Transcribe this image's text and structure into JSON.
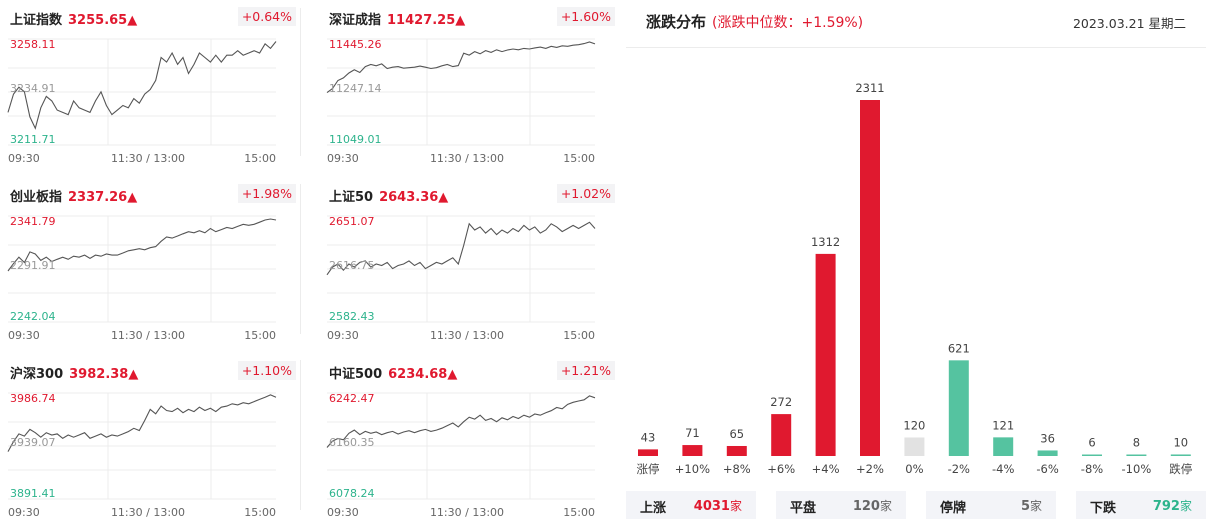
{
  "indices": [
    {
      "name": "上证指数",
      "price": "3255.65▲",
      "change": "+0.64%",
      "y_top": "3258.11",
      "y_mid": "3234.91",
      "y_bot": "3211.71",
      "x_labels": [
        "09:30",
        "11:30 / 13:00",
        "15:00"
      ],
      "ylim": [
        3211.71,
        3258.11
      ],
      "series": [
        3226,
        3234,
        3237,
        3235,
        3224,
        3219,
        3228,
        3233,
        3231,
        3227,
        3226,
        3225,
        3231,
        3228,
        3227,
        3226,
        3231,
        3235,
        3229,
        3225,
        3227,
        3229,
        3228,
        3232,
        3230,
        3234,
        3236,
        3240,
        3250,
        3248,
        3252,
        3247,
        3250,
        3243,
        3247,
        3252,
        3250,
        3248,
        3251,
        3248,
        3251,
        3251,
        3253,
        3251,
        3252,
        3253,
        3252,
        3256,
        3254,
        3257
      ]
    },
    {
      "name": "深证成指",
      "price": "11427.25▲",
      "change": "+1.60%",
      "y_top": "11445.26",
      "y_mid": "11247.14",
      "y_bot": "11049.01",
      "x_labels": [
        "09:30",
        "11:30 / 13:00",
        "15:00"
      ],
      "ylim": [
        11049.01,
        11445.26
      ],
      "series": [
        11245,
        11260,
        11290,
        11300,
        11318,
        11330,
        11320,
        11342,
        11350,
        11345,
        11352,
        11335,
        11340,
        11342,
        11336,
        11338,
        11340,
        11344,
        11340,
        11335,
        11338,
        11345,
        11350,
        11342,
        11346,
        11392,
        11385,
        11398,
        11390,
        11402,
        11395,
        11405,
        11398,
        11404,
        11408,
        11405,
        11410,
        11408,
        11412,
        11415,
        11410,
        11418,
        11414,
        11420,
        11418,
        11422,
        11424,
        11428,
        11434,
        11427
      ]
    },
    {
      "name": "创业板指",
      "price": "2337.26▲",
      "change": "+1.98%",
      "y_top": "2341.79",
      "y_mid": "2291.91",
      "y_bot": "2242.04",
      "x_labels": [
        "09:30",
        "11:30 / 13:00",
        "15:00"
      ],
      "ylim": [
        2242.04,
        2341.79
      ],
      "series": [
        2290,
        2297,
        2303,
        2298,
        2308,
        2306,
        2300,
        2303,
        2299,
        2301,
        2303,
        2301,
        2304,
        2303,
        2305,
        2302,
        2305,
        2304,
        2306,
        2305,
        2305,
        2307,
        2309,
        2310,
        2311,
        2310,
        2312,
        2313,
        2318,
        2322,
        2321,
        2323,
        2325,
        2327,
        2326,
        2328,
        2326,
        2330,
        2327,
        2329,
        2331,
        2330,
        2332,
        2334,
        2333,
        2334,
        2336,
        2338,
        2339,
        2338
      ]
    },
    {
      "name": "上证50",
      "price": "2643.36▲",
      "change": "+1.02%",
      "y_top": "2651.07",
      "y_mid": "2616.75",
      "y_bot": "2582.43",
      "x_labels": [
        "09:30",
        "11:30 / 13:00",
        "15:00"
      ],
      "ylim": [
        2582.43,
        2651.07
      ],
      "series": [
        2613,
        2618,
        2620,
        2616,
        2620,
        2618,
        2621,
        2622,
        2618,
        2620,
        2619,
        2621,
        2617,
        2619,
        2620,
        2622,
        2619,
        2621,
        2617,
        2619,
        2621,
        2620,
        2622,
        2624,
        2620,
        2632,
        2646,
        2642,
        2644,
        2640,
        2643,
        2639,
        2642,
        2640,
        2643,
        2641,
        2645,
        2642,
        2644,
        2640,
        2642,
        2646,
        2644,
        2641,
        2643,
        2645,
        2643,
        2645,
        2647,
        2643
      ]
    },
    {
      "name": "沪深300",
      "price": "3982.38▲",
      "change": "+1.10%",
      "y_top": "3986.74",
      "y_mid": "3939.07",
      "y_bot": "3891.41",
      "x_labels": [
        "09:30",
        "11:30 / 13:00",
        "15:00"
      ],
      "ylim": [
        3891.41,
        3986.74
      ],
      "series": [
        3934,
        3943,
        3950,
        3948,
        3954,
        3951,
        3947,
        3951,
        3949,
        3950,
        3946,
        3949,
        3947,
        3949,
        3951,
        3946,
        3948,
        3950,
        3947,
        3949,
        3948,
        3950,
        3952,
        3955,
        3953,
        3962,
        3972,
        3968,
        3975,
        3971,
        3970,
        3973,
        3969,
        3972,
        3970,
        3974,
        3971,
        3973,
        3970,
        3974,
        3975,
        3977,
        3976,
        3978,
        3977,
        3979,
        3981,
        3983,
        3985,
        3983
      ]
    },
    {
      "name": "中证500",
      "price": "6234.68▲",
      "change": "+1.21%",
      "y_top": "6242.47",
      "y_mid": "6160.35",
      "y_bot": "6078.24",
      "x_labels": [
        "09:30",
        "11:30 / 13:00",
        "15:00"
      ],
      "ylim": [
        6078.24,
        6242.47
      ],
      "series": [
        6158,
        6168,
        6172,
        6170,
        6180,
        6185,
        6178,
        6183,
        6180,
        6182,
        6178,
        6181,
        6183,
        6179,
        6182,
        6184,
        6181,
        6184,
        6186,
        6183,
        6185,
        6188,
        6192,
        6196,
        6190,
        6198,
        6205,
        6202,
        6208,
        6200,
        6203,
        6198,
        6204,
        6201,
        6206,
        6203,
        6208,
        6205,
        6210,
        6208,
        6212,
        6215,
        6220,
        6218,
        6225,
        6228,
        6230,
        6232,
        6238,
        6235
      ]
    }
  ],
  "distribution": {
    "title": "涨跌分布",
    "subtitle": "(涨跌中位数：+1.59%)",
    "date": "2023.03.21 星期二"
  },
  "chart_data": {
    "type": "bar",
    "categories": [
      "涨停",
      "+10%",
      "+8%",
      "+6%",
      "+4%",
      "+2%",
      "0%",
      "-2%",
      "-4%",
      "-6%",
      "-8%",
      "-10%",
      "跌停"
    ],
    "values": [
      43,
      71,
      65,
      272,
      1312,
      2311,
      120,
      621,
      121,
      36,
      6,
      8,
      10
    ],
    "value_labels": [
      "43",
      "71",
      "65",
      "272",
      "1312",
      "2311",
      "120",
      "621",
      "121",
      "36",
      "6",
      "8",
      "10"
    ],
    "ylim": [
      0,
      2311
    ],
    "colors": {
      "up": "#e0192f",
      "flat": "#e2e2e2",
      "down": "#55c3a0"
    }
  },
  "summary": [
    {
      "label": "上涨",
      "value": "4031",
      "unit": "家",
      "color": "#e0192f"
    },
    {
      "label": "平盘",
      "value": "120",
      "unit": "家",
      "color": "#666666"
    },
    {
      "label": "停牌",
      "value": "5",
      "unit": "家",
      "color": "#666666"
    },
    {
      "label": "下跌",
      "value": "792",
      "unit": "家",
      "color": "#2db38c"
    }
  ],
  "colors": {
    "up": "#e0192f",
    "down": "#2db38c",
    "line": "#555555",
    "grid": "#ececec"
  }
}
